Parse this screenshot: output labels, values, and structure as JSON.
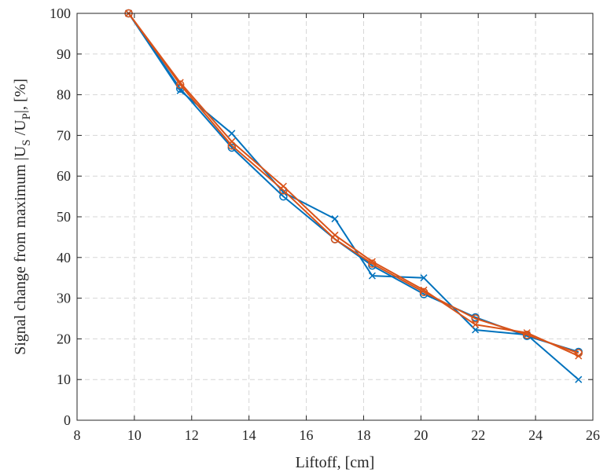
{
  "chart_data": {
    "type": "line",
    "xlabel": "Liftoff, [cm]",
    "ylabel": {
      "part1": "Signal change from maximum |U",
      "sub1": "S",
      "part2": " /U",
      "sub2": "P",
      "part3": "|, [%]"
    },
    "xlim": [
      8,
      26
    ],
    "ylim": [
      0,
      100
    ],
    "x_ticks": [
      "8",
      "10",
      "12",
      "14",
      "16",
      "18",
      "20",
      "22",
      "24",
      "26"
    ],
    "y_ticks": [
      "0",
      "10",
      "20",
      "30",
      "40",
      "50",
      "60",
      "70",
      "80",
      "90",
      "100"
    ],
    "grid": true,
    "series": [
      {
        "marker": "circle",
        "color": "#0072BD",
        "x": [
          9.8,
          11.6,
          13.4,
          15.2,
          17.0,
          18.3,
          20.1,
          21.9,
          23.7,
          25.5
        ],
        "y": [
          100,
          81.5,
          67,
          55,
          44.5,
          38,
          31,
          25.3,
          20.7,
          16.8
        ]
      },
      {
        "marker": "x",
        "color": "#0072BD",
        "x": [
          9.8,
          11.6,
          13.4,
          15.2,
          17.0,
          18.3,
          20.1,
          21.9,
          23.7,
          25.5
        ],
        "y": [
          100,
          81,
          70.5,
          56,
          49.5,
          35.5,
          35,
          22.2,
          21,
          10
        ]
      },
      {
        "marker": "circle",
        "color": "#D95319",
        "x": [
          9.8,
          11.6,
          13.4,
          15.2,
          17.0,
          18.3,
          20.1,
          21.9,
          23.7,
          25.5
        ],
        "y": [
          100,
          82.5,
          67.5,
          56.5,
          44.5,
          38.5,
          31.5,
          25,
          21,
          16.5
        ]
      },
      {
        "marker": "x",
        "color": "#D95319",
        "x": [
          9.8,
          11.6,
          13.4,
          15.2,
          17.0,
          18.3,
          20.1,
          21.9,
          23.7,
          25.5
        ],
        "y": [
          100,
          83,
          68.5,
          57.5,
          45.5,
          39,
          32,
          23.5,
          21.5,
          15.8
        ]
      }
    ]
  }
}
